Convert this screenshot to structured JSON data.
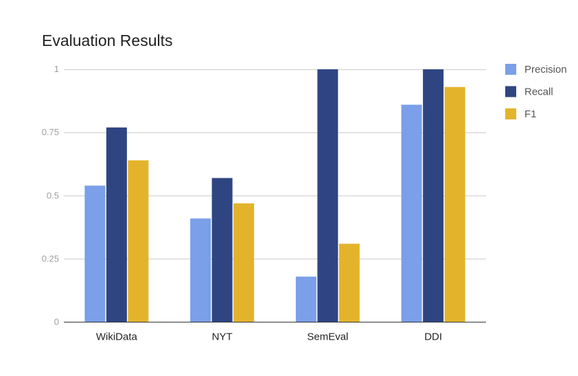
{
  "chart_data": {
    "type": "bar",
    "title": "Evaluation Results",
    "xlabel": "",
    "ylabel": "",
    "categories": [
      "WikiData",
      "NYT",
      "SemEval",
      "DDI"
    ],
    "series": [
      {
        "name": "Precision",
        "color": "#7b9fe8",
        "values": [
          0.54,
          0.41,
          0.18,
          0.86
        ]
      },
      {
        "name": "Recall",
        "color": "#2f4582",
        "values": [
          0.77,
          0.57,
          1.0,
          1.0
        ]
      },
      {
        "name": "F1",
        "color": "#e3b42b",
        "values": [
          0.64,
          0.47,
          0.31,
          0.93
        ]
      }
    ],
    "ylim": [
      0,
      1
    ],
    "yticks": [
      0,
      0.25,
      0.5,
      0.75,
      1
    ],
    "ytick_labels": [
      "0",
      "0.25",
      "0.5",
      "0.75",
      "1"
    ],
    "grid": true,
    "legend_position": "right"
  }
}
